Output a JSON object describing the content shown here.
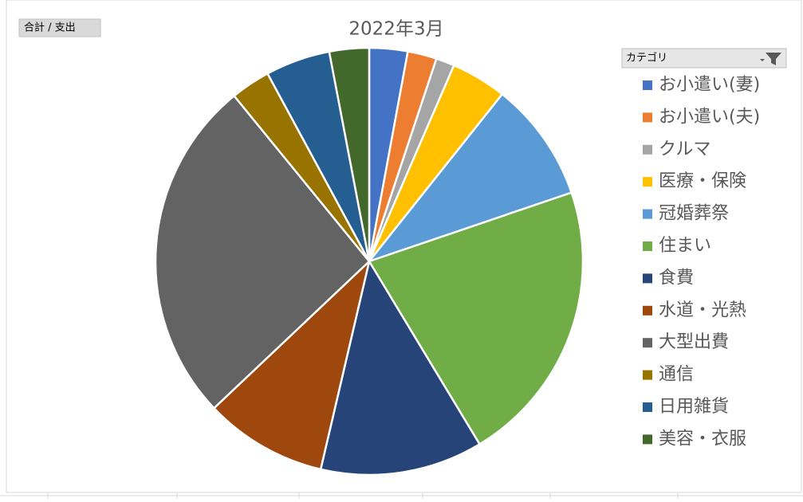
{
  "chart_data": {
    "type": "pie",
    "title": "2022年3月",
    "field_button": "合計 / 支出",
    "legend_title": "カテゴリ",
    "categories": [
      "お小遣い(妻)",
      "お小遣い(夫)",
      "クルマ",
      "医療・保険",
      "冠婚葬祭",
      "住まい",
      "食費",
      "水道・光熱",
      "大型出費",
      "通信",
      "日用雑貨",
      "美容・衣服"
    ],
    "values": [
      2.9,
      2.2,
      1.4,
      4.2,
      9.1,
      21.6,
      12.3,
      9.3,
      26.2,
      3.0,
      4.9,
      3.0
    ],
    "colors": [
      "#4472C4",
      "#ED7D31",
      "#A5A5A5",
      "#FFC000",
      "#5B9BD5",
      "#70AD47",
      "#264478",
      "#9E480E",
      "#636363",
      "#997300",
      "#255E91",
      "#43682B"
    ],
    "legend": "right"
  }
}
